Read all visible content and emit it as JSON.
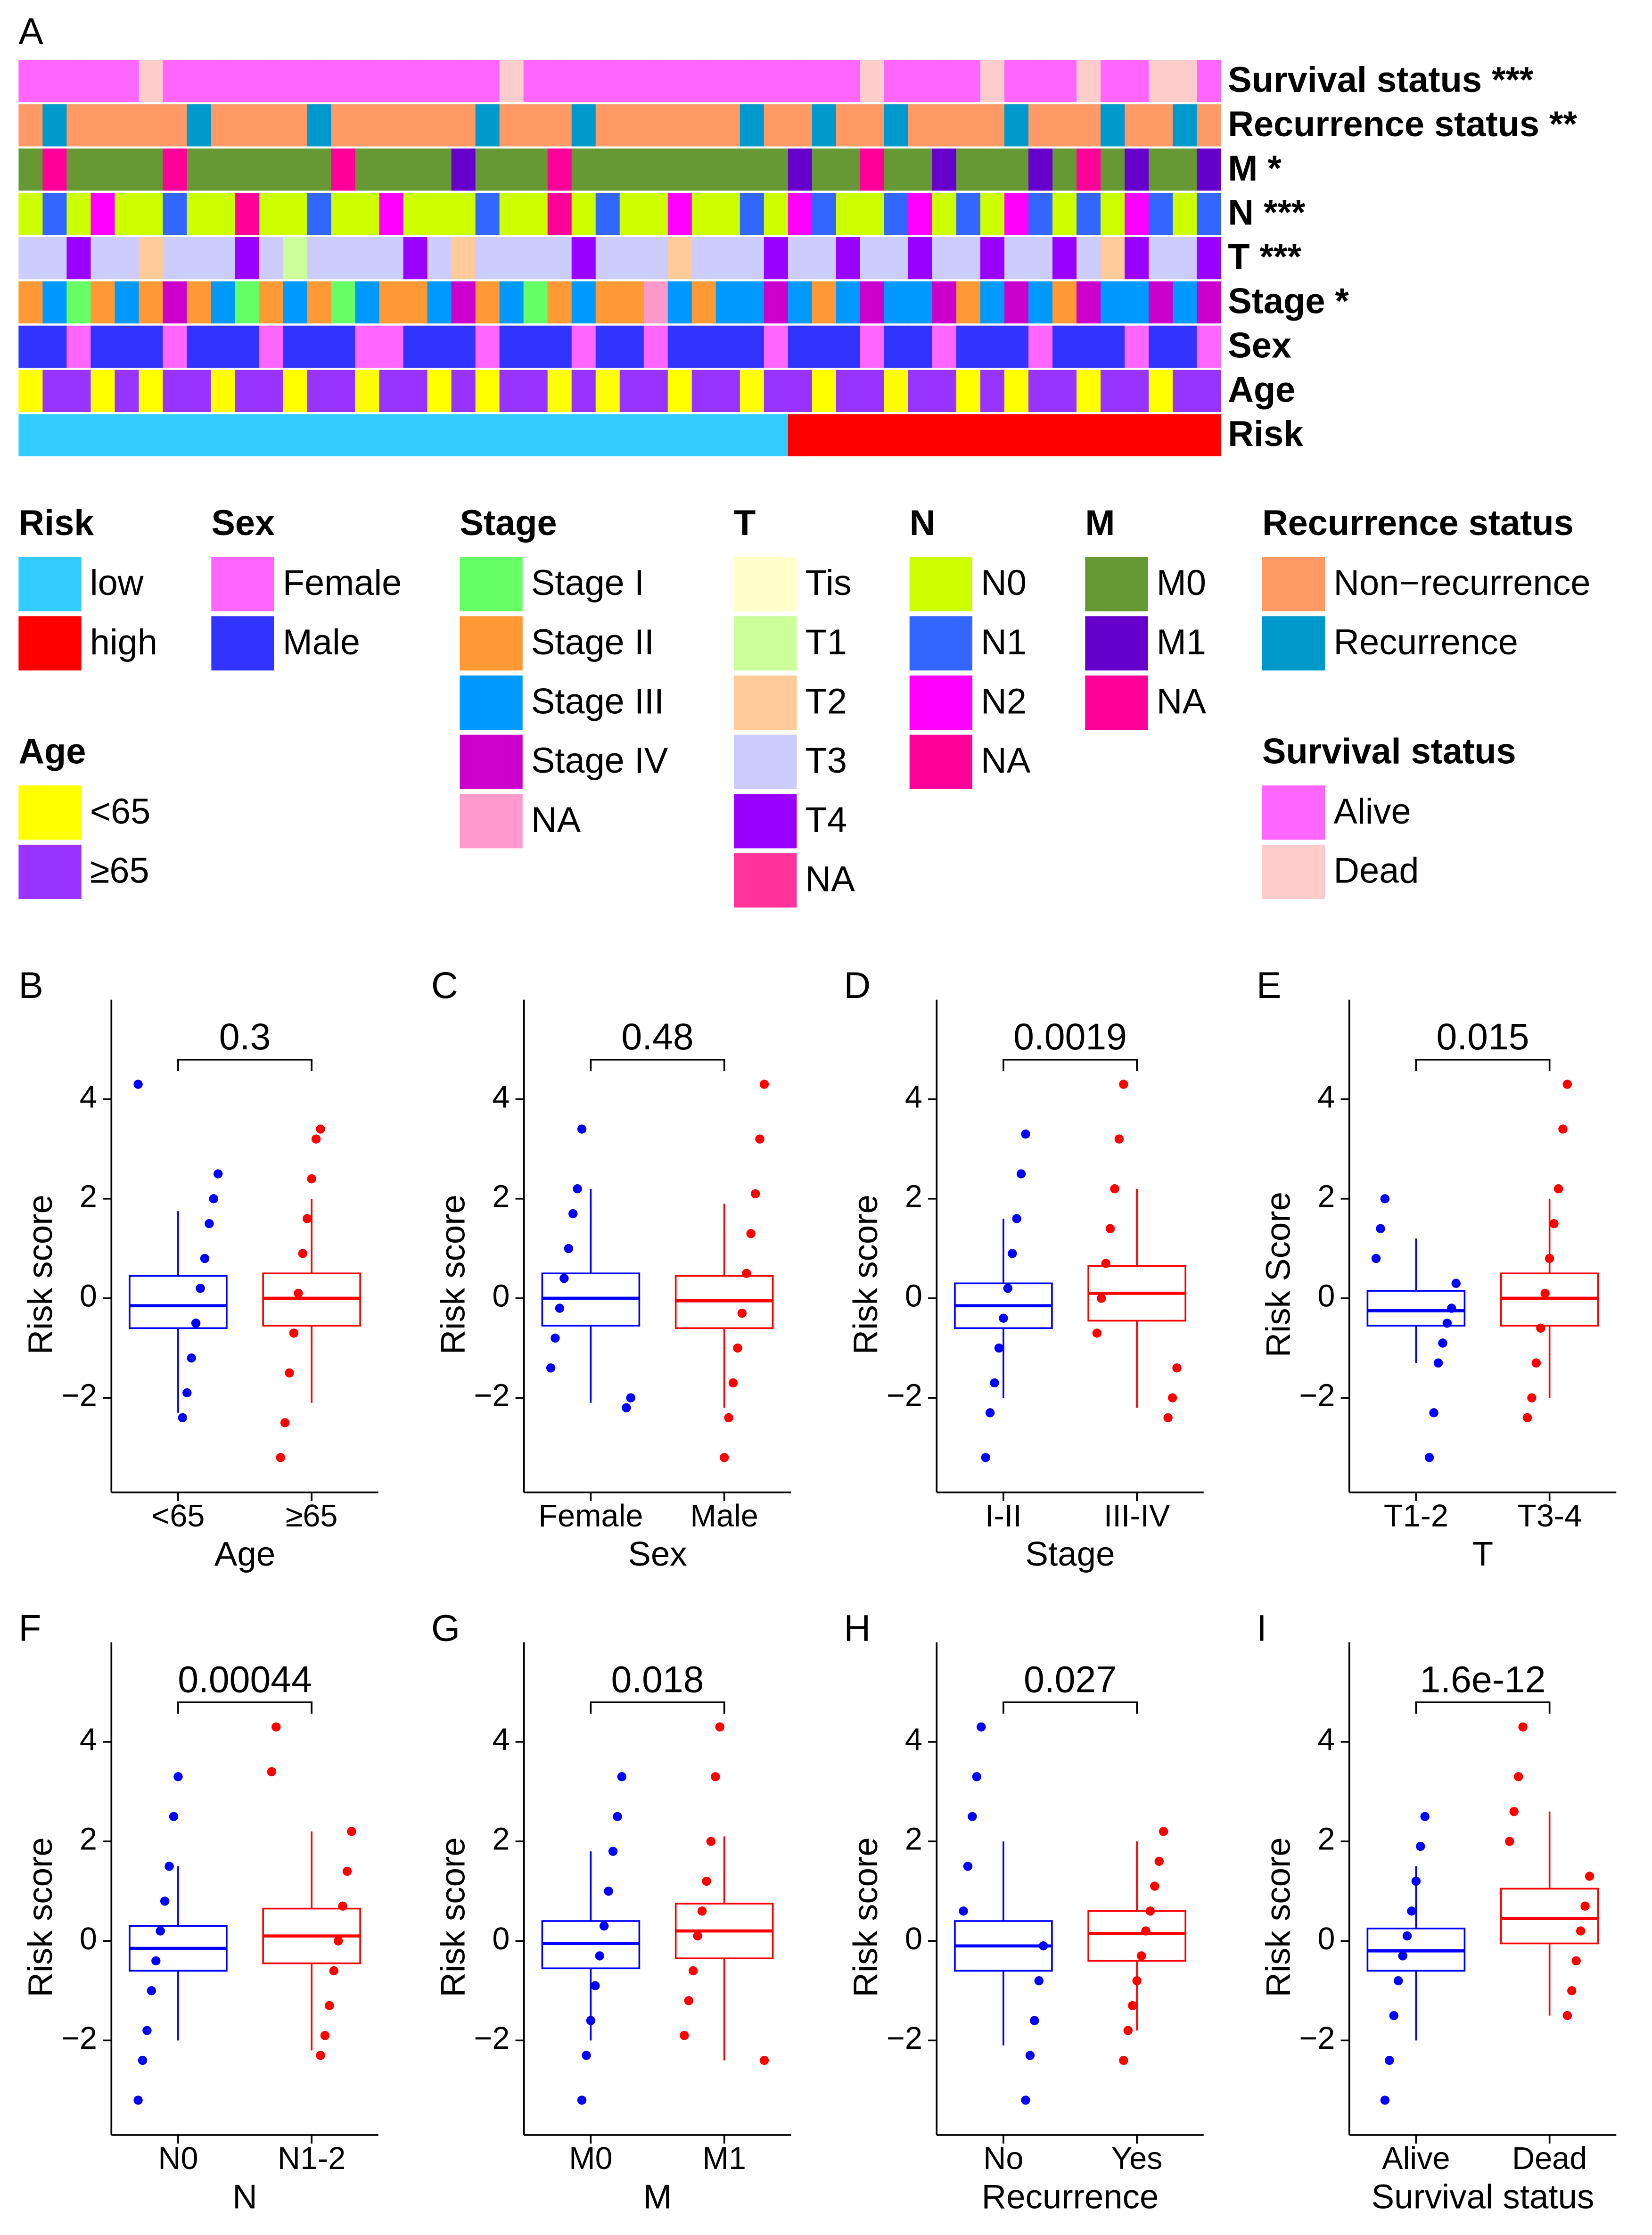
{
  "panel_a": {
    "label": "A",
    "tracks": [
      {
        "label": "Survival status ***",
        "legend": {
          "title": "Survival status",
          "items": [
            {
              "label": "Alive",
              "color": "#ff66ff"
            },
            {
              "label": "Dead",
              "color": "#ffcccc"
            }
          ]
        },
        "values": [
          0,
          0,
          0,
          0,
          0,
          1,
          0,
          0,
          0,
          0,
          0,
          0,
          0,
          0,
          0,
          0,
          0,
          0,
          0,
          0,
          1,
          0,
          0,
          0,
          0,
          0,
          0,
          0,
          0,
          0,
          0,
          0,
          0,
          0,
          0,
          1,
          0,
          0,
          0,
          0,
          1,
          0,
          0,
          0,
          1,
          0,
          0,
          1,
          1,
          0
        ]
      },
      {
        "label": "Recurrence status **",
        "legend": {
          "title": "Recurrence status",
          "items": [
            {
              "label": "Non−recurrence",
              "color": "#ff9966"
            },
            {
              "label": "Recurrence",
              "color": "#0099cc"
            }
          ]
        },
        "values": [
          0,
          1,
          0,
          0,
          0,
          0,
          0,
          1,
          0,
          0,
          0,
          0,
          1,
          0,
          0,
          0,
          0,
          0,
          0,
          1,
          0,
          0,
          0,
          1,
          0,
          0,
          0,
          0,
          0,
          0,
          1,
          0,
          0,
          1,
          0,
          0,
          1,
          0,
          0,
          0,
          0,
          1,
          0,
          0,
          0,
          1,
          0,
          0,
          1,
          0
        ]
      },
      {
        "label": "M *",
        "legend": {
          "title": "M",
          "items": [
            {
              "label": "M0",
              "color": "#669933"
            },
            {
              "label": "M1",
              "color": "#6600cc"
            },
            {
              "label": "NA",
              "color": "#ff0099"
            }
          ]
        },
        "values": [
          0,
          2,
          0,
          0,
          0,
          0,
          2,
          0,
          0,
          0,
          0,
          0,
          0,
          2,
          0,
          0,
          0,
          0,
          1,
          0,
          0,
          0,
          2,
          0,
          0,
          0,
          0,
          0,
          0,
          0,
          0,
          0,
          1,
          0,
          0,
          2,
          0,
          0,
          1,
          0,
          0,
          0,
          1,
          0,
          2,
          0,
          1,
          0,
          0,
          1
        ]
      },
      {
        "label": "N ***",
        "legend": {
          "title": "N",
          "items": [
            {
              "label": "N0",
              "color": "#ccff00"
            },
            {
              "label": "N1",
              "color": "#3366ff"
            },
            {
              "label": "N2",
              "color": "#ff00ff"
            },
            {
              "label": "NA",
              "color": "#ff0099"
            }
          ]
        },
        "values": [
          0,
          1,
          0,
          2,
          0,
          0,
          1,
          0,
          0,
          3,
          0,
          0,
          1,
          0,
          0,
          2,
          0,
          0,
          0,
          1,
          0,
          0,
          3,
          0,
          1,
          0,
          0,
          2,
          0,
          0,
          1,
          0,
          2,
          1,
          0,
          0,
          1,
          2,
          0,
          1,
          0,
          2,
          1,
          0,
          1,
          0,
          2,
          1,
          0,
          1
        ]
      },
      {
        "label": "T ***",
        "legend": {
          "title": "T",
          "items": [
            {
              "label": "Tis",
              "color": "#ffffcc"
            },
            {
              "label": "T1",
              "color": "#ccff99"
            },
            {
              "label": "T2",
              "color": "#ffcc99"
            },
            {
              "label": "T3",
              "color": "#ccccff"
            },
            {
              "label": "T4",
              "color": "#9900ff"
            },
            {
              "label": "NA",
              "color": "#ff3399"
            }
          ]
        },
        "values": [
          3,
          3,
          4,
          3,
          3,
          2,
          3,
          3,
          3,
          4,
          3,
          1,
          3,
          3,
          3,
          3,
          4,
          3,
          2,
          3,
          3,
          3,
          3,
          4,
          3,
          3,
          3,
          2,
          3,
          3,
          3,
          4,
          3,
          3,
          4,
          3,
          3,
          4,
          3,
          3,
          4,
          3,
          3,
          4,
          3,
          2,
          4,
          3,
          3,
          4
        ]
      },
      {
        "label": "Stage *",
        "legend": {
          "title": "Stage",
          "items": [
            {
              "label": "Stage I",
              "color": "#66ff66"
            },
            {
              "label": "Stage II",
              "color": "#ff9933"
            },
            {
              "label": "Stage III",
              "color": "#0099ff"
            },
            {
              "label": "Stage IV",
              "color": "#cc00cc"
            },
            {
              "label": "NA",
              "color": "#ff99cc"
            }
          ]
        },
        "values": [
          1,
          2,
          0,
          1,
          2,
          1,
          3,
          1,
          2,
          0,
          1,
          2,
          1,
          0,
          2,
          1,
          1,
          2,
          3,
          1,
          2,
          0,
          1,
          2,
          1,
          1,
          4,
          2,
          1,
          2,
          2,
          3,
          2,
          1,
          2,
          3,
          2,
          2,
          3,
          1,
          2,
          3,
          2,
          1,
          3,
          2,
          2,
          3,
          2,
          3
        ]
      },
      {
        "label": "Sex",
        "legend": {
          "title": "Sex",
          "items": [
            {
              "label": "Female",
              "color": "#ff66ff"
            },
            {
              "label": "Male",
              "color": "#3333ff"
            }
          ]
        },
        "values": [
          1,
          1,
          0,
          1,
          1,
          1,
          0,
          1,
          1,
          1,
          0,
          1,
          1,
          1,
          0,
          0,
          1,
          1,
          1,
          0,
          1,
          1,
          1,
          0,
          1,
          1,
          0,
          1,
          1,
          1,
          1,
          0,
          1,
          1,
          1,
          0,
          1,
          1,
          0,
          1,
          1,
          1,
          0,
          1,
          1,
          1,
          0,
          1,
          1,
          0
        ]
      },
      {
        "label": "Age",
        "legend": {
          "title": "Age",
          "items": [
            {
              "label": "<65",
              "color": "#ffff00"
            },
            {
              "label": "≥65",
              "color": "#9933ff"
            }
          ]
        },
        "values": [
          0,
          1,
          1,
          0,
          1,
          0,
          1,
          1,
          0,
          1,
          1,
          0,
          1,
          1,
          0,
          1,
          1,
          0,
          1,
          0,
          1,
          1,
          0,
          1,
          0,
          1,
          1,
          0,
          1,
          1,
          0,
          1,
          1,
          0,
          1,
          1,
          0,
          1,
          1,
          0,
          1,
          0,
          1,
          1,
          0,
          1,
          1,
          0,
          1,
          1
        ]
      },
      {
        "label": "Risk",
        "legend": {
          "title": "Risk",
          "items": [
            {
              "label": "low",
              "color": "#33ccff"
            },
            {
              "label": "high",
              "color": "#ff0000"
            }
          ]
        },
        "values": [
          0,
          0,
          0,
          0,
          0,
          0,
          0,
          0,
          0,
          0,
          0,
          0,
          0,
          0,
          0,
          0,
          0,
          0,
          0,
          0,
          0,
          0,
          0,
          0,
          0,
          0,
          0,
          0,
          0,
          0,
          0,
          0,
          1,
          1,
          1,
          1,
          1,
          1,
          1,
          1,
          1,
          1,
          1,
          1,
          1,
          1,
          1,
          1,
          1,
          1
        ]
      }
    ]
  },
  "chart_data": [
    {
      "type": "box",
      "label": "B",
      "p_value": "0.3",
      "x_label": "Age",
      "y_label": "Risk score",
      "categories": [
        "<65",
        "≥65"
      ],
      "ylim": [
        -3.9,
        6.0
      ],
      "yticks": [
        {
          "value": -2,
          "label": "−2"
        },
        0,
        2,
        4
      ],
      "groups": [
        {
          "color": "#0000ff",
          "q1": -0.6,
          "median": -0.15,
          "q3": 0.45,
          "lower": -2.3,
          "upper": 1.75,
          "points": [
            4.3,
            2.5,
            2.0,
            1.5,
            0.8,
            0.2,
            -0.5,
            -1.2,
            -1.9,
            -2.4
          ]
        },
        {
          "color": "#ff0000",
          "q1": -0.55,
          "median": 0,
          "q3": 0.5,
          "lower": -2.1,
          "upper": 2.0,
          "points": [
            3.4,
            3.2,
            2.4,
            1.6,
            0.9,
            0.1,
            -0.7,
            -1.5,
            -2.5,
            -3.2
          ]
        }
      ]
    },
    {
      "type": "box",
      "label": "C",
      "p_value": "0.48",
      "x_label": "Sex",
      "y_label": "Risk score",
      "categories": [
        "Female",
        "Male"
      ],
      "ylim": [
        -3.9,
        6.0
      ],
      "yticks": [
        {
          "value": -2,
          "label": "−2"
        },
        0,
        2,
        4
      ],
      "groups": [
        {
          "color": "#0000ff",
          "q1": -0.55,
          "median": 0,
          "q3": 0.5,
          "lower": -2.1,
          "upper": 2.2,
          "points": [
            3.4,
            2.2,
            1.7,
            1.0,
            0.4,
            -0.2,
            -0.8,
            -1.4,
            -2.0,
            -2.2
          ]
        },
        {
          "color": "#ff0000",
          "q1": -0.6,
          "median": -0.05,
          "q3": 0.45,
          "lower": -2.2,
          "upper": 1.9,
          "points": [
            4.3,
            3.2,
            2.1,
            1.3,
            0.5,
            -0.3,
            -1.0,
            -1.7,
            -2.4,
            -3.2
          ]
        }
      ]
    },
    {
      "type": "box",
      "label": "D",
      "p_value": "0.0019",
      "x_label": "Stage",
      "y_label": "Risk score",
      "categories": [
        "I-II",
        "III-IV"
      ],
      "ylim": [
        -3.9,
        6.0
      ],
      "yticks": [
        {
          "value": -2,
          "label": "−2"
        },
        0,
        2,
        4
      ],
      "groups": [
        {
          "color": "#0000ff",
          "q1": -0.6,
          "median": -0.15,
          "q3": 0.3,
          "lower": -2.0,
          "upper": 1.6,
          "points": [
            3.3,
            2.5,
            1.6,
            0.9,
            0.2,
            -0.4,
            -1.0,
            -1.7,
            -2.3,
            -3.2
          ]
        },
        {
          "color": "#ff0000",
          "q1": -0.45,
          "median": 0.1,
          "q3": 0.65,
          "lower": -2.2,
          "upper": 2.2,
          "points": [
            4.3,
            3.2,
            2.2,
            1.4,
            0.7,
            0.0,
            -0.7,
            -1.4,
            -2.0,
            -2.4
          ]
        }
      ]
    },
    {
      "type": "box",
      "label": "E",
      "p_value": "0.015",
      "x_label": "T",
      "y_label": "Risk Score",
      "categories": [
        "T1-2",
        "T3-4"
      ],
      "ylim": [
        -3.9,
        6.0
      ],
      "yticks": [
        {
          "value": -2,
          "label": "−2"
        },
        0,
        2,
        4
      ],
      "groups": [
        {
          "color": "#0000ff",
          "q1": -0.55,
          "median": -0.25,
          "q3": 0.15,
          "lower": -1.3,
          "upper": 1.2,
          "points": [
            2.0,
            1.4,
            0.8,
            0.3,
            -0.2,
            -0.5,
            -0.9,
            -1.3,
            -2.3,
            -3.2
          ]
        },
        {
          "color": "#ff0000",
          "q1": -0.55,
          "median": 0,
          "q3": 0.5,
          "lower": -2.0,
          "upper": 2.0,
          "points": [
            4.3,
            3.4,
            2.2,
            1.5,
            0.8,
            0.1,
            -0.6,
            -1.3,
            -2.0,
            -2.4
          ]
        }
      ]
    },
    {
      "type": "box",
      "label": "F",
      "p_value": "0.00044",
      "x_label": "N",
      "y_label": "Risk score",
      "categories": [
        "N0",
        "N1-2"
      ],
      "ylim": [
        -3.9,
        6.0
      ],
      "yticks": [
        {
          "value": -2,
          "label": "−2"
        },
        0,
        2,
        4
      ],
      "groups": [
        {
          "color": "#0000ff",
          "q1": -0.6,
          "median": -0.15,
          "q3": 0.3,
          "lower": -2.0,
          "upper": 1.5,
          "points": [
            3.3,
            2.5,
            1.5,
            0.8,
            0.2,
            -0.4,
            -1.0,
            -1.8,
            -2.4,
            -3.2
          ]
        },
        {
          "color": "#ff0000",
          "q1": -0.45,
          "median": 0.1,
          "q3": 0.65,
          "lower": -2.2,
          "upper": 2.2,
          "points": [
            4.3,
            3.4,
            2.2,
            1.4,
            0.7,
            0.0,
            -0.6,
            -1.3,
            -1.9,
            -2.3
          ]
        }
      ]
    },
    {
      "type": "box",
      "label": "G",
      "p_value": "0.018",
      "x_label": "M",
      "y_label": "Risk score",
      "categories": [
        "M0",
        "M1"
      ],
      "ylim": [
        -3.9,
        6.0
      ],
      "yticks": [
        {
          "value": -2,
          "label": "−2"
        },
        0,
        2,
        4
      ],
      "groups": [
        {
          "color": "#0000ff",
          "q1": -0.55,
          "median": -0.05,
          "q3": 0.4,
          "lower": -2.0,
          "upper": 1.8,
          "points": [
            3.3,
            2.5,
            1.8,
            1.0,
            0.3,
            -0.3,
            -0.9,
            -1.6,
            -2.3,
            -3.2
          ]
        },
        {
          "color": "#ff0000",
          "q1": -0.35,
          "median": 0.2,
          "q3": 0.75,
          "lower": -2.4,
          "upper": 2.1,
          "points": [
            4.3,
            3.3,
            2.0,
            1.2,
            0.6,
            0.1,
            -0.6,
            -1.2,
            -1.9,
            -2.4
          ]
        }
      ]
    },
    {
      "type": "box",
      "label": "H",
      "p_value": "0.027",
      "x_label": "Recurrence",
      "y_label": "Risk score",
      "categories": [
        "No",
        "Yes"
      ],
      "ylim": [
        -3.9,
        6.0
      ],
      "yticks": [
        {
          "value": -2,
          "label": "−2"
        },
        0,
        2,
        4
      ],
      "groups": [
        {
          "color": "#0000ff",
          "q1": -0.6,
          "median": -0.1,
          "q3": 0.4,
          "lower": -2.1,
          "upper": 2.0,
          "points": [
            4.3,
            3.3,
            2.5,
            1.5,
            0.6,
            -0.1,
            -0.8,
            -1.6,
            -2.3,
            -3.2
          ]
        },
        {
          "color": "#ff0000",
          "q1": -0.4,
          "median": 0.15,
          "q3": 0.6,
          "lower": -1.8,
          "upper": 2.0,
          "points": [
            2.2,
            1.6,
            1.1,
            0.6,
            0.2,
            -0.3,
            -0.8,
            -1.3,
            -1.8,
            -2.4
          ]
        }
      ]
    },
    {
      "type": "box",
      "label": "I",
      "p_value": "1.6e-12",
      "x_label": "Survival status",
      "y_label": "Risk score",
      "categories": [
        "Alive",
        "Dead"
      ],
      "ylim": [
        -3.9,
        6.0
      ],
      "yticks": [
        {
          "value": -2,
          "label": "−2"
        },
        0,
        2,
        4
      ],
      "groups": [
        {
          "color": "#0000ff",
          "q1": -0.6,
          "median": -0.2,
          "q3": 0.25,
          "lower": -2.0,
          "upper": 1.5,
          "points": [
            2.5,
            1.9,
            1.2,
            0.6,
            0.1,
            -0.3,
            -0.8,
            -1.5,
            -2.4,
            -3.2
          ]
        },
        {
          "color": "#ff0000",
          "q1": -0.05,
          "median": 0.45,
          "q3": 1.05,
          "lower": -1.5,
          "upper": 2.6,
          "points": [
            4.3,
            3.3,
            2.6,
            2.0,
            1.3,
            0.7,
            0.2,
            -0.4,
            -1.0,
            -1.5
          ]
        }
      ]
    }
  ]
}
